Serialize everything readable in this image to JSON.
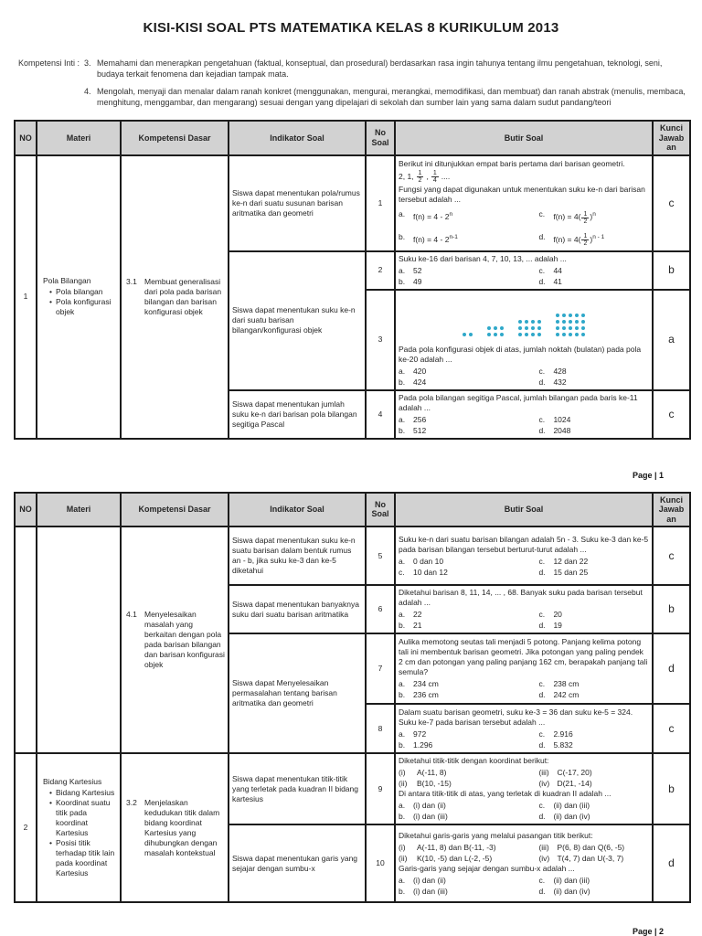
{
  "title": "KISI-KISI SOAL PTS MATEMATIKA KELAS 8 KURIKULUM 2013",
  "kompetensi_inti": {
    "label": "Kompetensi Inti :",
    "items": [
      {
        "num": "3.",
        "text": "Memahami dan menerapkan pengetahuan (faktual, konseptual, dan prosedural) berdasarkan rasa ingin tahunya tentang ilmu pengetahuan, teknologi, seni, budaya terkait fenomena dan kejadian tampak mata."
      },
      {
        "num": "4.",
        "text": "Mengolah, menyaji dan menalar dalam ranah konkret (menggunakan, mengurai, merangkai, memodifikasi, dan membuat) dan ranah abstrak (menulis, membaca, menghitung, menggambar, dan mengarang) sesuai dengan yang dipelajari di sekolah dan sumber lain yang sama dalam sudut pandang/teori"
      }
    ]
  },
  "headers": {
    "no": "NO",
    "materi": "Materi",
    "kd": "Kompetensi Dasar",
    "indikator": "Indikator Soal",
    "no_soal": "No Soal",
    "butir": "Butir Soal",
    "kunci": "Kunci Jawab an"
  },
  "page1": {
    "footer": "Page | 1",
    "block1": {
      "no": "1",
      "materi_title": "Pola Bilangan",
      "materi_items": [
        "Pola bilangan",
        "Pola konfigurasi objek"
      ],
      "kd_num": "3.1",
      "kd_text": "Membuat generalisasi dari pola pada barisan bilangan dan barisan konfigurasi objek",
      "indikator1": "Siswa dapat menentukan pola/rumus ke-n dari suatu susunan barisan aritmatika dan geometri",
      "indikator23": "Siswa dapat menentukan suku ke-n dari suatu barisan bilangan/konfigurasi objek",
      "indikator4": "Siswa dapat menentukan jumlah suku ke-n dari barisan pola bilangan segitiga Pascal"
    },
    "q1": {
      "no": "1",
      "line1": "Berikut ini ditunjukkan empat baris pertama dari barisan geometri.",
      "seq_pre": "2, 1,",
      "frac1": {
        "n": "1",
        "d": "2"
      },
      "seq_sep": ",",
      "frac2": {
        "n": "1",
        "d": "4"
      },
      "seq_post": "....",
      "line2": "Fungsi yang dapat digunakan untuk menentukan suku ke-n dari barisan tersebut adalah ...",
      "options": {
        "a": {
          "label": "a.",
          "base": "f(n) = 4 - 2",
          "sup": "n"
        },
        "c": {
          "label": "c.",
          "pre": "f(n) = 4(",
          "frac_n": "1",
          "frac_d": "2",
          "post": ")",
          "sup": "n"
        },
        "b": {
          "label": "b.",
          "base": "f(n) = 4 - 2",
          "sup": "n-1"
        },
        "d": {
          "label": "d.",
          "pre": "f(n) = 4(",
          "frac_n": "1",
          "frac_d": "2",
          "post": ")",
          "sup": "n - 1"
        }
      },
      "kunci": "c"
    },
    "q2": {
      "no": "2",
      "text": "Suku ke-16 dari barisan 4, 7, 10, 13, ... adalah ...",
      "options": [
        {
          "l": "a.",
          "t": "52"
        },
        {
          "l": "c.",
          "t": "44"
        },
        {
          "l": "b.",
          "t": "49"
        },
        {
          "l": "d.",
          "t": "41"
        }
      ],
      "kunci": "b"
    },
    "q3": {
      "no": "3",
      "figure": {
        "dot_color": "#2fa8c9",
        "groups": [
          [
            1,
            2
          ],
          [
            2,
            3
          ],
          [
            3,
            4
          ],
          [
            4,
            5
          ]
        ]
      },
      "text": "Pada pola konfigurasi objek di atas, jumlah noktah (bulatan) pada pola ke-20 adalah ...",
      "options": [
        {
          "l": "a.",
          "t": "420"
        },
        {
          "l": "c.",
          "t": "428"
        },
        {
          "l": "b.",
          "t": "424"
        },
        {
          "l": "d.",
          "t": "432"
        }
      ],
      "kunci": "a"
    },
    "q4": {
      "no": "4",
      "text": "Pada pola bilangan segitiga Pascal, jumlah bilangan pada baris ke-11 adalah ...",
      "options": [
        {
          "l": "a.",
          "t": "256"
        },
        {
          "l": "c.",
          "t": "1024"
        },
        {
          "l": "b.",
          "t": "512"
        },
        {
          "l": "d.",
          "t": "2048"
        }
      ],
      "kunci": "c"
    }
  },
  "page2": {
    "footer": "Page | 2",
    "block1": {
      "kd_num": "4.1",
      "kd_text": "Menyelesaikan masalah yang berkaitan dengan pola pada barisan bilangan dan barisan konfigurasi objek",
      "indikator5": "Siswa dapat menentukan suku ke-n suatu barisan dalam bentuk rumus an - b, jika suku ke-3 dan ke-5 diketahui",
      "indikator6": "Siswa dapat menentukan banyaknya suku dari suatu barisan aritmatika",
      "indikator78": "Siswa dapat Menyelesaikan permasalahan tentang barisan aritmatika dan geometri"
    },
    "block2": {
      "no": "2",
      "materi_title": "Bidang Kartesius",
      "materi_items": [
        "Bidang Kartesius",
        "Koordinat suatu titik pada koordinat Kartesius",
        "Posisi titik terhadap titik lain pada koordinat Kartesius"
      ],
      "kd_num": "3.2",
      "kd_text": "Menjelaskan kedudukan titik dalam bidang koordinat Kartesius yang dihubungkan dengan masalah kontekstual",
      "indikator9": "Siswa dapat menentukan titik-titik yang terletak pada kuadran II bidang kartesius",
      "indikator10": "Siswa dapat menentukan garis yang sejajar dengan sumbu-x"
    },
    "q5": {
      "no": "5",
      "text": "Suku ke-n dari suatu barisan bilangan adalah 5n - 3. Suku ke-3 dan ke-5 pada barisan bilangan tersebut berturut-turut adalah ...",
      "options": [
        {
          "l": "a.",
          "t": "0 dan 10"
        },
        {
          "l": "c.",
          "t": "12 dan 22"
        },
        {
          "l": "c.",
          "t": "10 dan 12"
        },
        {
          "l": "d.",
          "t": "15 dan 25"
        }
      ],
      "kunci": "c"
    },
    "q6": {
      "no": "6",
      "text": "Diketahui barisan 8, 11, 14, ... , 68. Banyak suku pada barisan tersebut adalah ...",
      "options": [
        {
          "l": "a.",
          "t": "22"
        },
        {
          "l": "c.",
          "t": "20"
        },
        {
          "l": "b.",
          "t": "21"
        },
        {
          "l": "d.",
          "t": "19"
        }
      ],
      "kunci": "b"
    },
    "q7": {
      "no": "7",
      "text": "Aulika memotong seutas tali menjadi 5 potong. Panjang kelima potong tali ini membentuk barisan geometri. Jika potongan yang paling pendek 2 cm dan potongan yang paling panjang 162 cm, berapakah panjang tali semula?",
      "options": [
        {
          "l": "a.",
          "t": "234 cm"
        },
        {
          "l": "c.",
          "t": "238 cm"
        },
        {
          "l": "b.",
          "t": "236 cm"
        },
        {
          "l": "d.",
          "t": "242 cm"
        }
      ],
      "kunci": "d"
    },
    "q8": {
      "no": "8",
      "text": "Dalam suatu barisan geometri, suku ke-3 = 36 dan suku ke-5 = 324. Suku ke-7 pada barisan tersebut adalah ...",
      "options": [
        {
          "l": "a.",
          "t": "972"
        },
        {
          "l": "c.",
          "t": "2.916"
        },
        {
          "l": "b.",
          "t": "1.296"
        },
        {
          "l": "d.",
          "t": "5.832"
        }
      ],
      "kunci": "c"
    },
    "q9": {
      "no": "9",
      "intro": "Diketahui titik-titik dengan koordinat berikut:",
      "points": [
        {
          "l": "(i)",
          "t": "A(-11, 8)"
        },
        {
          "l": "(iii)",
          "t": "C(-17, 20)"
        },
        {
          "l": "(ii)",
          "t": "B(10, -15)"
        },
        {
          "l": "(iv)",
          "t": "D(21, -14)"
        }
      ],
      "text": "Di antara titik-titik di atas, yang terletak di kuadran II adalah ...",
      "options": [
        {
          "l": "a.",
          "t": "(i) dan (ii)"
        },
        {
          "l": "c.",
          "t": "(ii) dan (iii)"
        },
        {
          "l": "b.",
          "t": "(i) dan (iii)"
        },
        {
          "l": "d.",
          "t": "(ii) dan (iv)"
        }
      ],
      "kunci": "b"
    },
    "q10": {
      "no": "10",
      "intro": "Diketahui garis-garis yang melalui pasangan titik berikut:",
      "points": [
        {
          "l": "(i)",
          "t": "A(-11, 8) dan B(-11, -3)"
        },
        {
          "l": "(iii)",
          "t": "P(6, 8) dan Q(6, -5)"
        },
        {
          "l": "(ii)",
          "t": "K(10, -5) dan L(-2, -5)"
        },
        {
          "l": "(iv)",
          "t": "T(4, 7) dan U(-3, 7)"
        }
      ],
      "text": "Garis-garis yang sejajar dengan sumbu-x adalah ...",
      "options": [
        {
          "l": "a.",
          "t": "(i) dan (ii)"
        },
        {
          "l": "c.",
          "t": "(ii) dan (iii)"
        },
        {
          "l": "b.",
          "t": "(i) dan (iii)"
        },
        {
          "l": "d.",
          "t": "(ii) dan (iv)"
        }
      ],
      "kunci": "d"
    }
  }
}
